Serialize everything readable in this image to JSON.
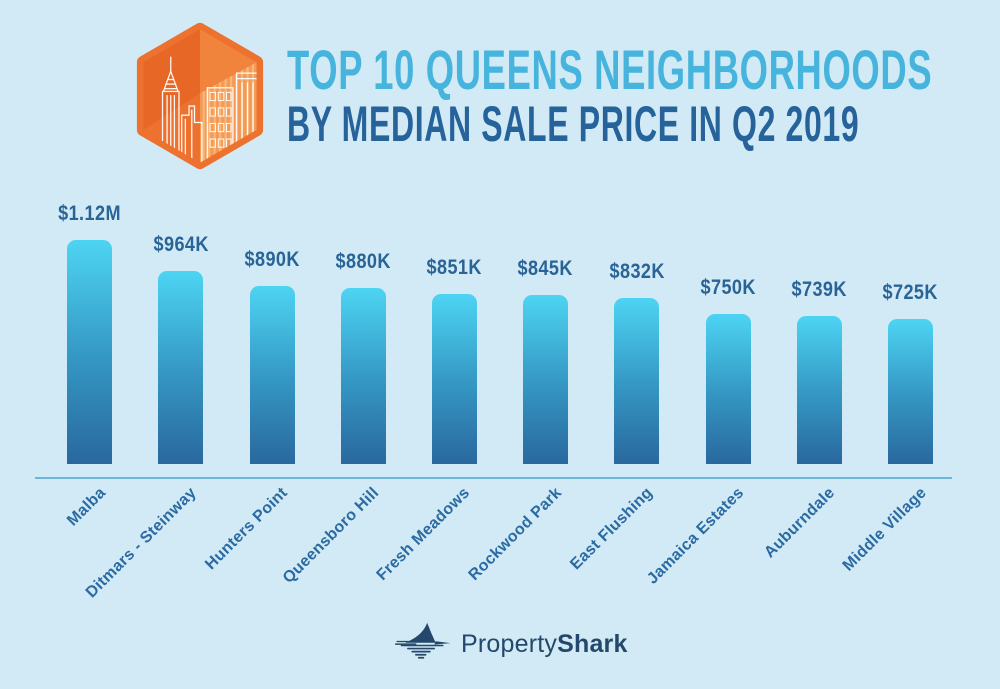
{
  "header": {
    "badge_icon": "nyc-skyline-hexagon-icon",
    "title_line1": "TOP 10 QUEENS NEIGHBORHOODS",
    "title_line2": "BY MEDIAN SALE PRICE IN Q2 2019"
  },
  "chart_data": {
    "type": "bar",
    "title": "Top 10 Queens Neighborhoods by Median Sale Price in Q2 2019",
    "categories": [
      "Malba",
      "Ditmars - Steinway",
      "Hunters Point",
      "Queensboro Hill",
      "Fresh Meadows",
      "Rockwood Park",
      "East Flushing",
      "Jamaica Estates",
      "Auburndale",
      "Middle Village"
    ],
    "values": [
      1120000,
      964000,
      890000,
      880000,
      851000,
      845000,
      832000,
      750000,
      739000,
      725000
    ],
    "value_labels": [
      "$1.12M",
      "$964K",
      "$890K",
      "$880K",
      "$851K",
      "$845K",
      "$832K",
      "$750K",
      "$739K",
      "$725K"
    ],
    "xlabel": "",
    "ylabel": "",
    "ylim": [
      0,
      1120000
    ],
    "grid": false,
    "legend": false,
    "bar_color_top": "#4dd4f3",
    "bar_color_bottom": "#29689e",
    "axis_label_rotation_deg": -45
  },
  "footer": {
    "logo_icon": "shark-fin-icon",
    "brand_regular": "Property",
    "brand_bold": "Shark"
  },
  "colors": {
    "background": "#d2eaf5",
    "title_primary": "#46b4dc",
    "title_secondary": "#27639b",
    "value_label": "#2a6496",
    "axis_label": "#2b6ba3",
    "baseline": "#6ab6d8",
    "badge_orange": "#ed722f",
    "logo_navy": "#23486b"
  }
}
